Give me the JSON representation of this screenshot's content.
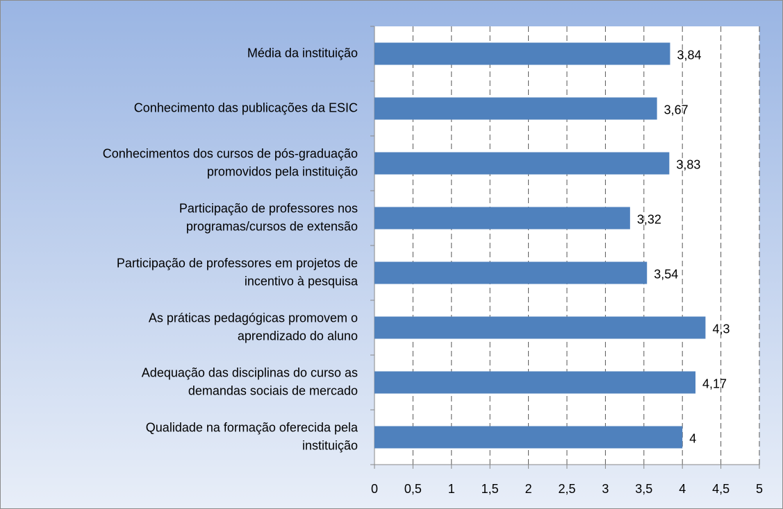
{
  "chart_data": {
    "type": "bar",
    "orientation": "horizontal",
    "categories": [
      [
        "Média da instituição"
      ],
      [
        "Conhecimento das publicações da ESIC"
      ],
      [
        "Conhecimentos dos cursos de pós-graduação",
        "promovidos pela instituição"
      ],
      [
        "Participação de professores nos",
        "programas/cursos de extensão"
      ],
      [
        "Participação de professores em projetos de",
        "incentivo à pesquisa"
      ],
      [
        "As práticas pedagógicas promovem o",
        "aprendizado do aluno"
      ],
      [
        "Adequação das disciplinas do curso as",
        "demandas sociais de mercado"
      ],
      [
        "Qualidade na formação oferecida pela",
        "instituição"
      ]
    ],
    "values": [
      3.84,
      3.67,
      3.83,
      3.32,
      3.54,
      4.3,
      4.17,
      4
    ],
    "value_labels": [
      "3,84",
      "3,67",
      "3,83",
      "3,32",
      "3,54",
      "4,3",
      "4,17",
      "4"
    ],
    "color": "#4f81bd",
    "xlim": [
      0,
      5
    ],
    "xticks": [
      0,
      {
        "value": 0.5,
        "label": "0,5"
      },
      1,
      {
        "value": 1.5,
        "label": "1,5"
      },
      2,
      {
        "value": 2.5,
        "label": "2,5"
      },
      3,
      {
        "value": 3.5,
        "label": "3,5"
      },
      4,
      {
        "value": 4.5,
        "label": "4,5"
      },
      5
    ],
    "grid": true
  }
}
